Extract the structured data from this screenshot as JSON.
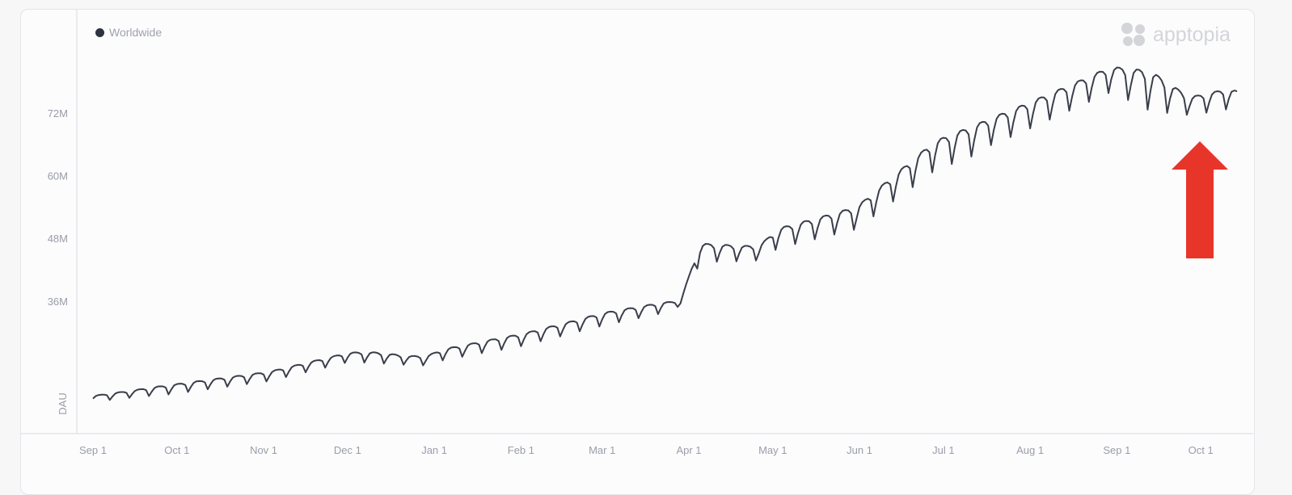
{
  "legend": {
    "label": "Worldwide",
    "color": "#2e3342"
  },
  "logo": {
    "text": "apptopia",
    "icon": "apptopia-clover-icon"
  },
  "annotation": {
    "icon": "red-up-arrow-icon",
    "color": "#e8352a"
  },
  "chart_data": {
    "type": "line",
    "title": "",
    "xlabel": "",
    "ylabel": "DAU",
    "x_ticks": [
      "Sep 1",
      "Oct 1",
      "Nov 1",
      "Dec 1",
      "Jan 1",
      "Feb 1",
      "Mar 1",
      "Apr 1",
      "May 1",
      "Jun 1",
      "Jul 1",
      "Aug 1",
      "Sep 1",
      "Oct 1"
    ],
    "y_ticks": [
      {
        "value": 36,
        "label": "36M"
      },
      {
        "value": 48,
        "label": "48M"
      },
      {
        "value": 60,
        "label": "60M"
      },
      {
        "value": 72,
        "label": "72M"
      }
    ],
    "y_unit": "millions",
    "ylim": [
      10.7,
      90
    ],
    "grid": false,
    "legend_position": "top-left",
    "series": [
      {
        "name": "Worldwide",
        "color": "#3a3e4a",
        "x_start": "2019-09-01",
        "x_end": "2020-10-14",
        "resolution": "daily, shown here as weekly high/low (weekly cycle)",
        "weekly_high": [
          17.9,
          18.4,
          18.9,
          19.5,
          20.0,
          20.5,
          21.0,
          21.5,
          22.0,
          22.5,
          23.4,
          24.3,
          25.2,
          26.1,
          26.3,
          26.0,
          25.5,
          25.5,
          26.9,
          27.6,
          28.4,
          29.1,
          29.8,
          30.8,
          31.7,
          32.7,
          33.7,
          34.4,
          35.0,
          35.7,
          36.0,
          47.0,
          46.8,
          46.6,
          46.5,
          49.9,
          50.9,
          51.9,
          53.0,
          54.0,
          57.2,
          60.3,
          63.5,
          66.6,
          68.1,
          69.6,
          71.2,
          72.7,
          74.3,
          75.9,
          77.5,
          79.2,
          80.8,
          80.4,
          80.0,
          77.5,
          75.0,
          75.8,
          76.6,
          75.5
        ],
        "weekly_low": [
          16.7,
          17.0,
          17.4,
          17.7,
          18.0,
          18.5,
          19.0,
          19.5,
          20.0,
          20.5,
          21.4,
          22.3,
          23.2,
          24.1,
          24.0,
          23.8,
          23.6,
          23.5,
          24.6,
          25.2,
          25.9,
          26.5,
          27.2,
          28.2,
          29.1,
          30.1,
          31.0,
          31.8,
          32.6,
          33.4,
          35.0,
          43.0,
          43.2,
          43.3,
          43.5,
          45.7,
          46.6,
          47.5,
          48.4,
          49.3,
          52.1,
          54.9,
          57.6,
          60.4,
          61.8,
          63.2,
          65.6,
          67.0,
          68.7,
          70.4,
          72.1,
          73.8,
          75.5,
          73.5,
          71.5,
          71.3,
          71.2,
          71.7,
          72.3,
          72.5
        ]
      }
    ]
  }
}
